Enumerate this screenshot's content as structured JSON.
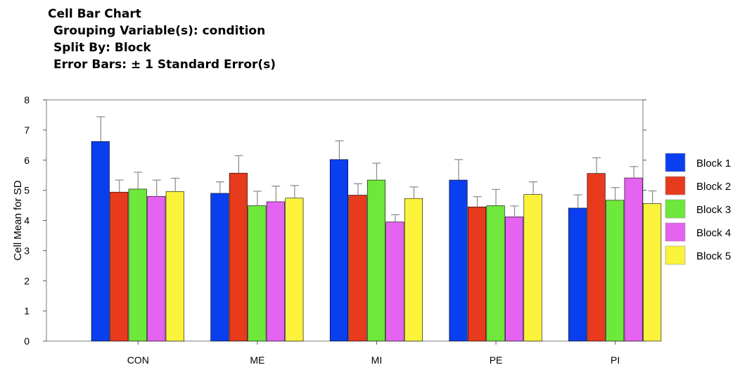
{
  "header": {
    "title": "Cell Bar Chart",
    "grouping": "Grouping Variable(s): condition",
    "split": "Split By: Block",
    "error_bars": "Error Bars: ± 1 Standard Error(s)"
  },
  "colors": {
    "Block 1": "#0a3ff0",
    "Block 2": "#e83a1c",
    "Block 3": "#6ee83a",
    "Block 4": "#e463f0",
    "Block 5": "#fbf23c"
  },
  "chart_data": {
    "type": "bar",
    "title": "Cell Bar Chart",
    "xlabel": "",
    "ylabel": "Cell Mean for SD",
    "ylim": [
      0,
      8
    ],
    "yticks": [
      0,
      1,
      2,
      3,
      4,
      5,
      6,
      7,
      8
    ],
    "grid": false,
    "legend": "right",
    "error_bars": "± 1 Standard Error",
    "categories": [
      "CON",
      "ME",
      "MI",
      "PE",
      "PI"
    ],
    "series": [
      {
        "name": "Block 1",
        "values": [
          6.62,
          4.9,
          6.02,
          5.34,
          4.41
        ],
        "errors": [
          0.82,
          0.38,
          0.62,
          0.68,
          0.44
        ]
      },
      {
        "name": "Block 2",
        "values": [
          4.94,
          5.57,
          4.84,
          4.45,
          5.56
        ],
        "errors": [
          0.4,
          0.58,
          0.38,
          0.34,
          0.52
        ]
      },
      {
        "name": "Block 3",
        "values": [
          5.04,
          4.49,
          5.34,
          4.49,
          4.67
        ],
        "errors": [
          0.56,
          0.48,
          0.56,
          0.54,
          0.42
        ]
      },
      {
        "name": "Block 4",
        "values": [
          4.8,
          4.62,
          3.95,
          4.12,
          5.41
        ],
        "errors": [
          0.54,
          0.52,
          0.24,
          0.36,
          0.38
        ]
      },
      {
        "name": "Block 5",
        "values": [
          4.96,
          4.74,
          4.73,
          4.86,
          4.56
        ],
        "errors": [
          0.44,
          0.42,
          0.38,
          0.42,
          0.42
        ]
      }
    ]
  }
}
